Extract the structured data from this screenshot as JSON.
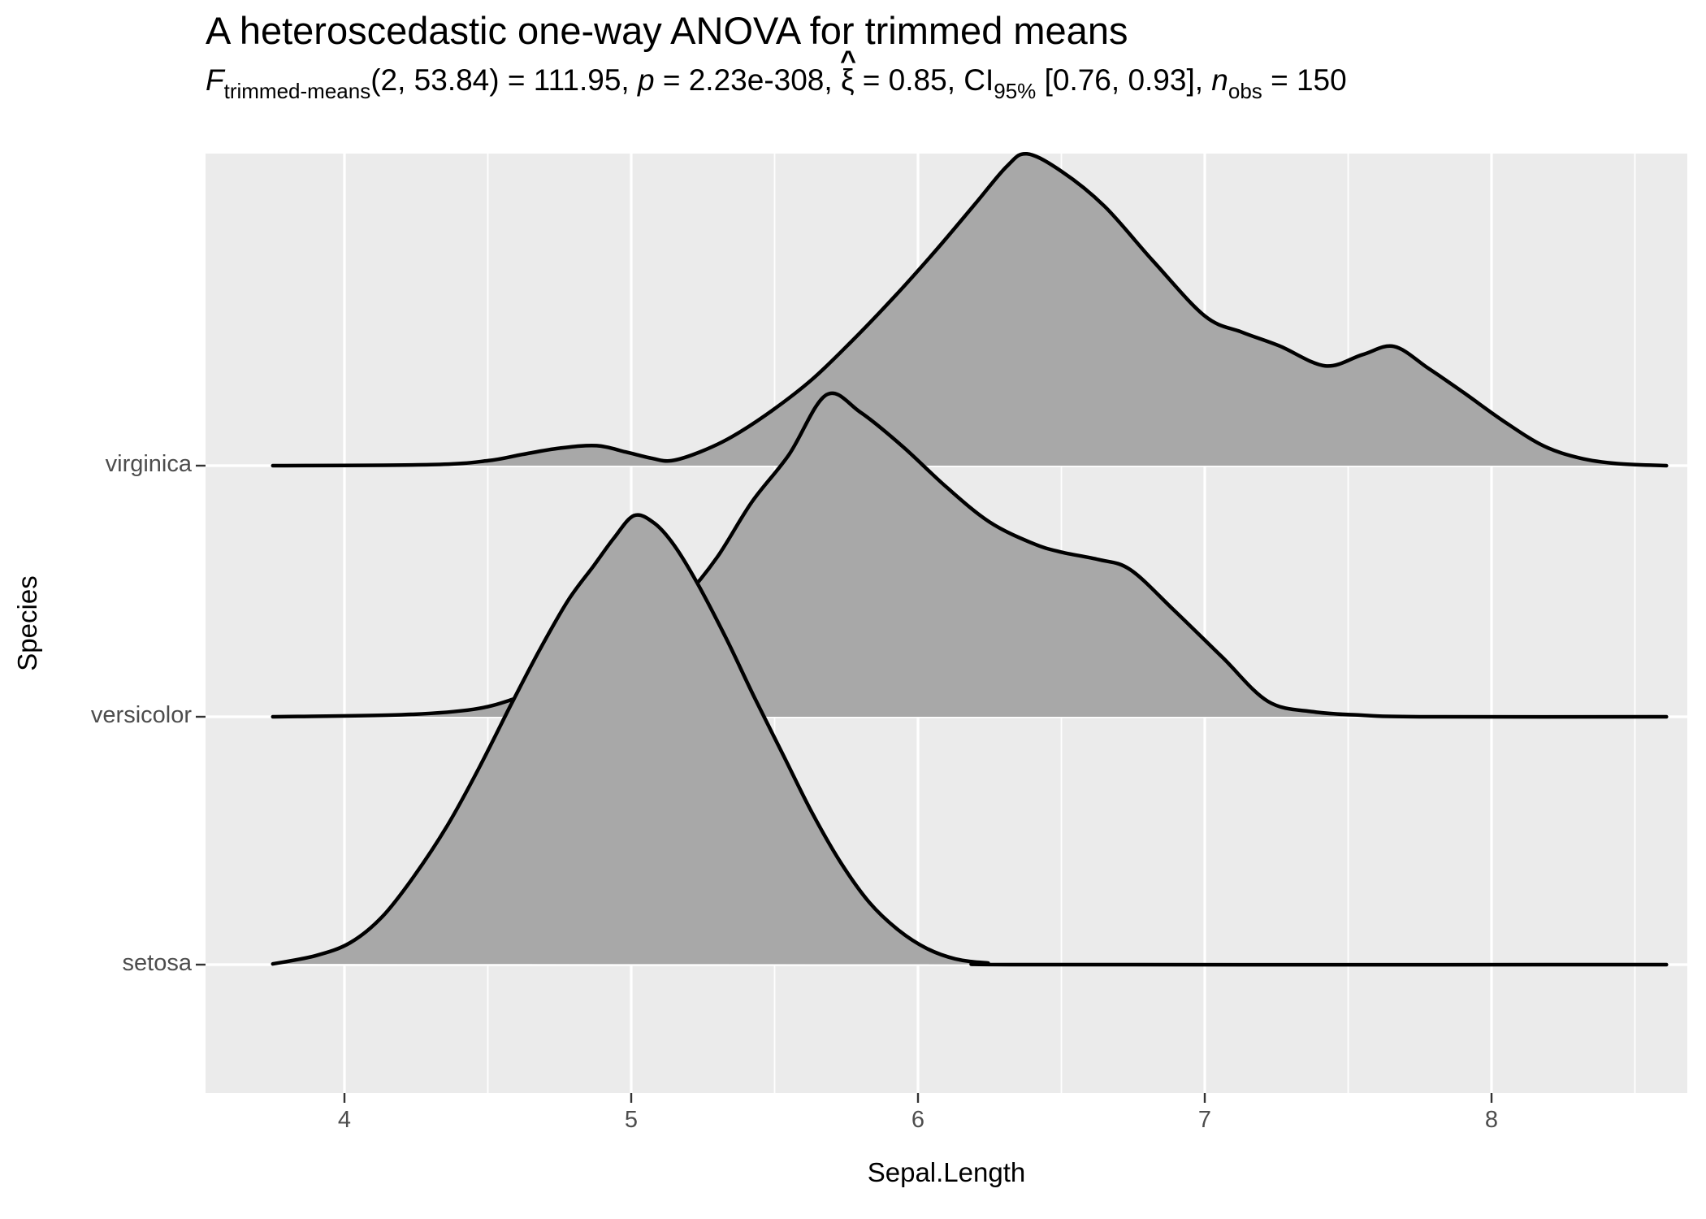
{
  "title": "A heteroscedastic one-way ANOVA for trimmed means",
  "subtitle_parts": [
    {
      "t": "F",
      "s": "it"
    },
    {
      "t": "trimmed-means",
      "s": "sub"
    },
    {
      "t": "(2, 53.84) = 111.95, ",
      "s": "n"
    },
    {
      "t": "p",
      "s": "it"
    },
    {
      "t": " = 2.23e-308, ",
      "s": "n"
    },
    {
      "t": "ξ",
      "s": "xihat"
    },
    {
      "t": " = 0.85, CI",
      "s": "n"
    },
    {
      "t": "95%",
      "s": "sub"
    },
    {
      "t": " [0.76, 0.93], ",
      "s": "n"
    },
    {
      "t": "n",
      "s": "it"
    },
    {
      "t": "obs",
      "s": "sub"
    },
    {
      "t": " = 150",
      "s": "n"
    }
  ],
  "hat_char": "^",
  "x_axis": {
    "label": "Sepal.Length",
    "tick_labels": [
      "4",
      "5",
      "6",
      "7",
      "8"
    ],
    "tick_values": [
      4,
      5,
      6,
      7,
      8
    ]
  },
  "y_axis": {
    "label": "Species",
    "categories": [
      "virginica",
      "versicolor",
      "setosa"
    ]
  },
  "colors": {
    "panel_bg": "#EBEBEB",
    "grid": "#FFFFFF",
    "ridge_fill": "#A8A8A8",
    "ridge_stroke": "#000000",
    "tick_label": "#4D4D4D",
    "axis_title": "#000000",
    "tick_mark": "#333333"
  },
  "chart_data": {
    "type": "area",
    "subtype": "density_ridges",
    "title": "A heteroscedastic one-way ANOVA for trimmed means",
    "xlabel": "Sepal.Length",
    "ylabel": "Species",
    "x_domain": [
      3.52,
      8.68
    ],
    "x_ticks": [
      4,
      5,
      6,
      7,
      8
    ],
    "x_minor_ticks": [
      4.5,
      5.5,
      6.5,
      7.5,
      8.5
    ],
    "grid": true,
    "legend": false,
    "note": "height = kernel density in units of one category row spacing; draw order back-to-front",
    "series": [
      {
        "name": "virginica",
        "row_index": 0,
        "points": [
          [
            3.75,
            0.0
          ],
          [
            4.3,
            0.004
          ],
          [
            4.5,
            0.02
          ],
          [
            4.62,
            0.045
          ],
          [
            4.75,
            0.07
          ],
          [
            4.88,
            0.08
          ],
          [
            4.98,
            0.055
          ],
          [
            5.07,
            0.03
          ],
          [
            5.14,
            0.02
          ],
          [
            5.24,
            0.055
          ],
          [
            5.35,
            0.115
          ],
          [
            5.49,
            0.22
          ],
          [
            5.63,
            0.345
          ],
          [
            5.77,
            0.5
          ],
          [
            5.92,
            0.68
          ],
          [
            6.06,
            0.86
          ],
          [
            6.2,
            1.05
          ],
          [
            6.31,
            1.2
          ],
          [
            6.38,
            1.25
          ],
          [
            6.5,
            1.18
          ],
          [
            6.65,
            1.04
          ],
          [
            6.82,
            0.82
          ],
          [
            7.0,
            0.6
          ],
          [
            7.13,
            0.535
          ],
          [
            7.26,
            0.48
          ],
          [
            7.42,
            0.4
          ],
          [
            7.55,
            0.445
          ],
          [
            7.66,
            0.478
          ],
          [
            7.78,
            0.39
          ],
          [
            7.9,
            0.295
          ],
          [
            8.04,
            0.18
          ],
          [
            8.18,
            0.08
          ],
          [
            8.31,
            0.03
          ],
          [
            8.44,
            0.008
          ],
          [
            8.61,
            0.0
          ]
        ]
      },
      {
        "name": "versicolor",
        "row_index": 1,
        "points": [
          [
            3.75,
            0.0
          ],
          [
            4.2,
            0.008
          ],
          [
            4.45,
            0.03
          ],
          [
            4.6,
            0.075
          ],
          [
            4.75,
            0.14
          ],
          [
            4.9,
            0.23
          ],
          [
            5.05,
            0.335
          ],
          [
            5.18,
            0.47
          ],
          [
            5.3,
            0.64
          ],
          [
            5.42,
            0.86
          ],
          [
            5.55,
            1.05
          ],
          [
            5.68,
            1.29
          ],
          [
            5.8,
            1.22
          ],
          [
            5.95,
            1.08
          ],
          [
            6.1,
            0.92
          ],
          [
            6.25,
            0.78
          ],
          [
            6.4,
            0.695
          ],
          [
            6.5,
            0.66
          ],
          [
            6.63,
            0.63
          ],
          [
            6.74,
            0.59
          ],
          [
            6.89,
            0.43
          ],
          [
            7.06,
            0.24
          ],
          [
            7.22,
            0.062
          ],
          [
            7.38,
            0.02
          ],
          [
            7.54,
            0.007
          ],
          [
            7.75,
            0.0
          ],
          [
            8.61,
            0.0
          ]
        ]
      },
      {
        "name": "setosa",
        "row_index": 2,
        "points": [
          [
            3.75,
            0.003
          ],
          [
            3.9,
            0.036
          ],
          [
            4.02,
            0.088
          ],
          [
            4.13,
            0.19
          ],
          [
            4.24,
            0.35
          ],
          [
            4.36,
            0.56
          ],
          [
            4.47,
            0.79
          ],
          [
            4.58,
            1.04
          ],
          [
            4.68,
            1.26
          ],
          [
            4.78,
            1.46
          ],
          [
            4.87,
            1.6
          ],
          [
            4.94,
            1.71
          ],
          [
            5.01,
            1.8
          ],
          [
            5.08,
            1.77
          ],
          [
            5.15,
            1.68
          ],
          [
            5.23,
            1.53
          ],
          [
            5.33,
            1.31
          ],
          [
            5.43,
            1.07
          ],
          [
            5.53,
            0.84
          ],
          [
            5.63,
            0.61
          ],
          [
            5.73,
            0.41
          ],
          [
            5.83,
            0.25
          ],
          [
            5.93,
            0.14
          ],
          [
            6.03,
            0.065
          ],
          [
            6.13,
            0.023
          ],
          [
            6.24,
            0.007
          ],
          [
            6.4,
            0.0
          ],
          [
            8.61,
            0.0
          ]
        ]
      }
    ]
  }
}
